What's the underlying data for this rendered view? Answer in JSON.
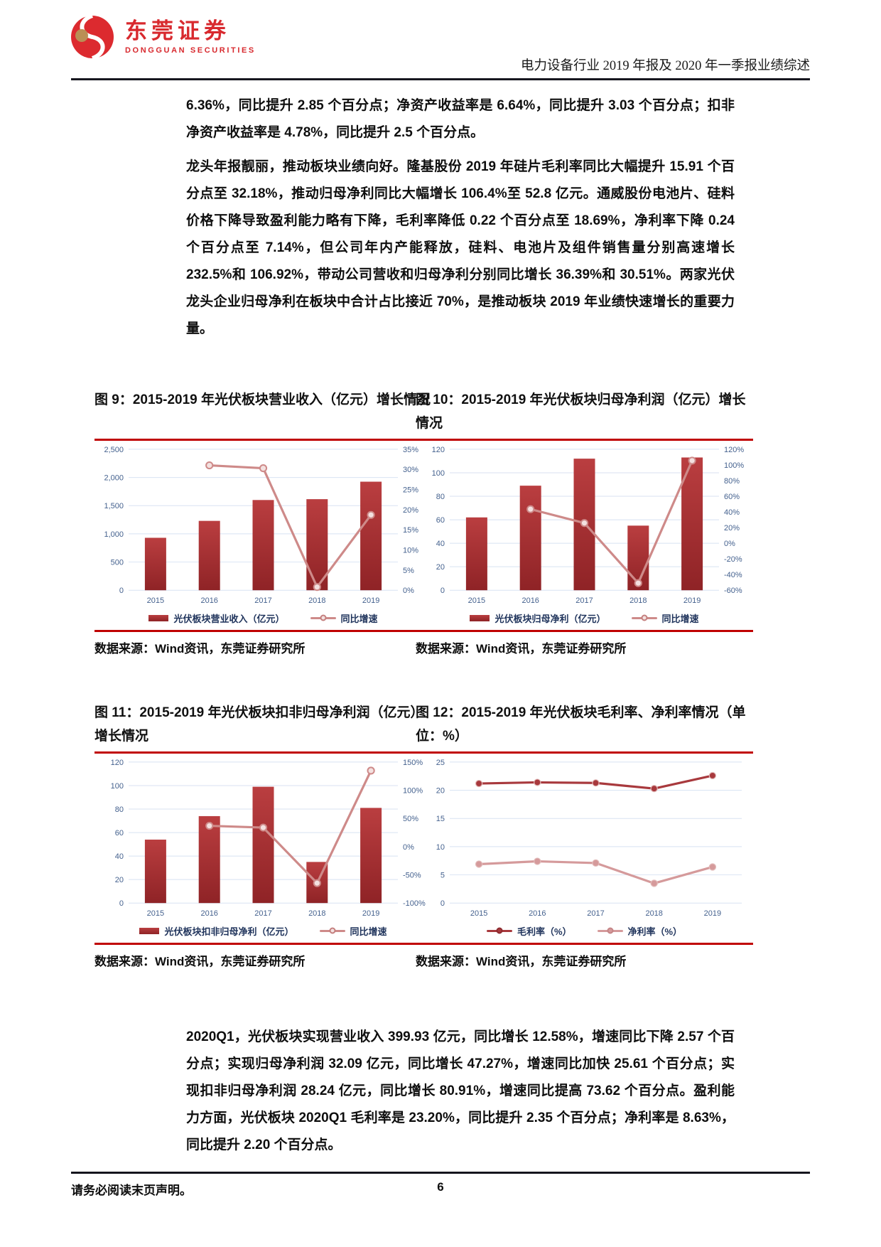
{
  "logo": {
    "cn": "东莞证券",
    "en": "DONGGUAN SECURITIES"
  },
  "header": {
    "title": "电力设备行业 2019 年报及 2020 年一季报业绩综述"
  },
  "paragraphs": {
    "p1": "6.36%，同比提升 2.85 个百分点；净资产收益率是 6.64%，同比提升 3.03 个百分点；扣非净资产收益率是 4.78%，同比提升 2.5 个百分点。",
    "p2": "龙头年报靓丽，推动板块业绩向好。隆基股份 2019 年硅片毛利率同比大幅提升 15.91 个百分点至 32.18%，推动归母净利同比大幅增长 106.4%至 52.8 亿元。通威股份电池片、硅料价格下降导致盈利能力略有下降，毛利率降低 0.22 个百分点至 18.69%，净利率下降 0.24 个百分点至 7.14%，但公司年内产能释放，硅料、电池片及组件销售量分别高速增长 232.5%和 106.92%，带动公司营收和归母净利分别同比增长 36.39%和 30.51%。两家光伏龙头企业归母净利在板块中合计占比接近 70%，是推动板块 2019 年业绩快速增长的重要力量。",
    "p3": "2020Q1，光伏板块实现营业收入 399.93 亿元，同比增长 12.58%，增速同比下降 2.57 个百分点；实现归母净利润 32.09 亿元，同比增长 47.27%，增速同比加快 25.61 个百分点；实现扣非归母净利润 28.24 亿元，同比增长 80.91%，增速同比提高 73.62 个百分点。盈利能力方面，光伏板块 2020Q1 毛利率是 23.20%，同比提升 2.35 个百分点；净利率是 8.63%，同比提升 2.20 个百分点。"
  },
  "figures": [
    {
      "title": "图 9：2015-2019 年光伏板块营业收入（亿元）增长情况",
      "legend": [
        "光伏板块营业收入（亿元）",
        "同比增速"
      ],
      "source": "数据来源：Wind资讯，东莞证券研究所"
    },
    {
      "title": "图 10：2015-2019 年光伏板块归母净利润（亿元）增长情况",
      "legend": [
        "光伏板块归母净利（亿元）",
        "同比增速"
      ],
      "source": "数据来源：Wind资讯，东莞证券研究所"
    },
    {
      "title": "图 11：2015-2019 年光伏板块扣非归母净利润（亿元）增长情况",
      "legend": [
        "光伏板块扣非归母净利（亿元）",
        "同比增速"
      ],
      "source": "数据来源：Wind资讯，东莞证券研究所"
    },
    {
      "title": "图 12：2015-2019 年光伏板块毛利率、净利率情况（单位：%）",
      "legend": [
        "毛利率（%）",
        "净利率（%）"
      ],
      "source": "数据来源：Wind资讯，东莞证券研究所"
    }
  ],
  "chart_data": [
    {
      "type": "bar",
      "title": "图 9：2015-2019 年光伏板块营业收入（亿元）增长情况",
      "categories": [
        "2015",
        "2016",
        "2017",
        "2018",
        "2019"
      ],
      "series": [
        {
          "name": "光伏板块营业收入（亿元）",
          "type": "bar",
          "axis": "left",
          "values": [
            930,
            1230,
            1600,
            1615,
            1925
          ]
        },
        {
          "name": "同比增速",
          "type": "line",
          "axis": "right",
          "color": "#CE8A89",
          "marker": "ring",
          "values": [
            null,
            31.0,
            30.3,
            0.8,
            18.7
          ]
        }
      ],
      "left_axis": {
        "min": 0,
        "max": 2500,
        "step": 500,
        "comma": true
      },
      "right_axis": {
        "min": 0,
        "max": 35,
        "step": 5,
        "unit": "%"
      },
      "grid": true,
      "legend_position": "bottom"
    },
    {
      "type": "bar",
      "title": "图 10：2015-2019 年光伏板块归母净利润（亿元）增长情况",
      "categories": [
        "2015",
        "2016",
        "2017",
        "2018",
        "2019"
      ],
      "series": [
        {
          "name": "光伏板块归母净利（亿元）",
          "type": "bar",
          "axis": "left",
          "values": [
            62,
            89,
            112,
            55,
            113
          ]
        },
        {
          "name": "同比增速",
          "type": "line",
          "axis": "right",
          "color": "#CE8A89",
          "marker": "ring",
          "values": [
            null,
            43.5,
            25.8,
            -50.9,
            105.5
          ]
        }
      ],
      "left_axis": {
        "min": 0,
        "max": 120,
        "step": 20
      },
      "right_axis": {
        "min": -60,
        "max": 120,
        "step": 20,
        "unit": "%"
      },
      "grid": true,
      "legend_position": "bottom"
    },
    {
      "type": "bar",
      "title": "图 11：2015-2019 年光伏板块扣非归母净利润（亿元）增长情况",
      "categories": [
        "2015",
        "2016",
        "2017",
        "2018",
        "2019"
      ],
      "series": [
        {
          "name": "光伏板块扣非归母净利（亿元）",
          "type": "bar",
          "axis": "left",
          "values": [
            54,
            74,
            99,
            35,
            81
          ]
        },
        {
          "name": "同比增速",
          "type": "line",
          "axis": "right",
          "color": "#CE8A89",
          "marker": "ring",
          "values": [
            null,
            37.0,
            33.8,
            -64.6,
            134.8
          ]
        }
      ],
      "left_axis": {
        "min": 0,
        "max": 120,
        "step": 20
      },
      "right_axis": {
        "min": -100,
        "max": 150,
        "step": 50,
        "unit": "%"
      },
      "grid": true,
      "legend_position": "bottom"
    },
    {
      "type": "line",
      "title": "图 12：2015-2019 年光伏板块毛利率、净利率情况（单位：%）",
      "categories": [
        "2015",
        "2016",
        "2017",
        "2018",
        "2019"
      ],
      "series": [
        {
          "name": "毛利率（%）",
          "type": "line",
          "axis": "left",
          "color": "#A8393D",
          "marker": "dot",
          "values": [
            21.2,
            21.4,
            21.3,
            20.3,
            22.6
          ]
        },
        {
          "name": "净利率（%）",
          "type": "line",
          "axis": "left",
          "color": "#D59A9B",
          "marker": "dot",
          "values": [
            6.9,
            7.4,
            7.1,
            3.5,
            6.4
          ]
        }
      ],
      "left_axis": {
        "min": 0,
        "max": 25,
        "step": 5
      },
      "grid": true,
      "legend_position": "bottom"
    }
  ],
  "footer": {
    "disclaimer": "请务必阅读末页声明。",
    "page": "6"
  },
  "colors": {
    "brand_red": "#D8292E",
    "figure_rule_red": "#C00000",
    "bar_red": "#A93134",
    "growth_line_pink": "#CE8A89",
    "gross_margin_line": "#A8393D",
    "net_margin_line": "#D59A9B",
    "axis_label_blue": "#44618E",
    "gridline_blue": "#D8E2F2"
  }
}
